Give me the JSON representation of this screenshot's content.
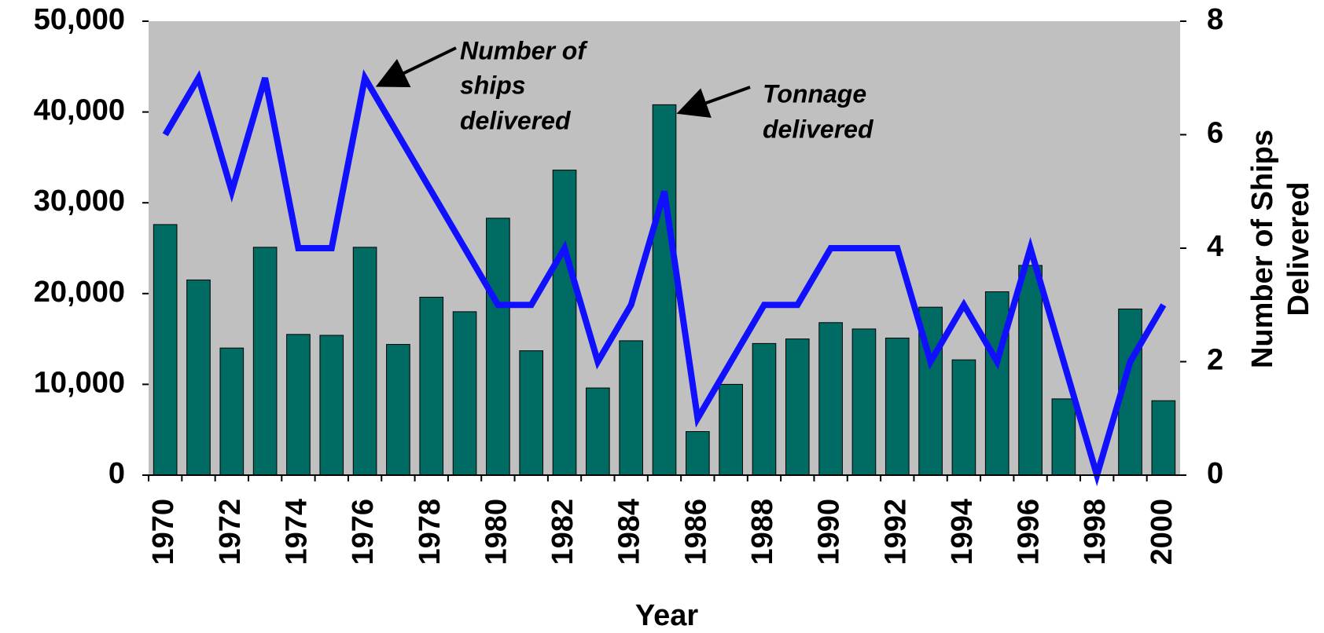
{
  "chart_data": {
    "type": "bar",
    "x_label": "Year",
    "y2_label": [
      "Number of Ships",
      "Delivered"
    ],
    "annotations": [
      {
        "text": [
          "Number of",
          "ships",
          "delivered"
        ]
      },
      {
        "text": [
          "Tonnage",
          "delivered"
        ]
      }
    ],
    "categories": [
      "1970",
      "1971",
      "1972",
      "1973",
      "1974",
      "1975",
      "1976",
      "1977",
      "1978",
      "1979",
      "1980",
      "1981",
      "1982",
      "1983",
      "1984",
      "1985",
      "1986",
      "1987",
      "1988",
      "1989",
      "1990",
      "1991",
      "1992",
      "1993",
      "1994",
      "1995",
      "1996",
      "1997",
      "1998",
      "1999",
      "2000"
    ],
    "category_labels": [
      "1970",
      null,
      "1972",
      null,
      "1974",
      null,
      "1976",
      null,
      "1978",
      null,
      "1980",
      null,
      "1982",
      null,
      "1984",
      null,
      "1986",
      null,
      "1988",
      null,
      "1990",
      null,
      "1992",
      null,
      "1994",
      null,
      "1996",
      null,
      "1998",
      null,
      "2000"
    ],
    "series": [
      {
        "name": "Tonnage delivered",
        "type": "bar",
        "color": "#006b63",
        "values": [
          27600,
          21500,
          14000,
          25100,
          15500,
          15400,
          25100,
          14400,
          19600,
          18000,
          28300,
          13700,
          33600,
          9600,
          14800,
          40800,
          4800,
          10000,
          14500,
          15000,
          16800,
          16100,
          15100,
          18500,
          12700,
          20200,
          23100,
          8400,
          0,
          18300,
          8200
        ]
      },
      {
        "name": "Number of ships delivered",
        "type": "line",
        "axis": "y2",
        "color": "#1010ff",
        "values": [
          6,
          7,
          5,
          7,
          4,
          4,
          7,
          6,
          5,
          4,
          3,
          3,
          4,
          2,
          3,
          5,
          1,
          2,
          3,
          3,
          4,
          4,
          4,
          2,
          3,
          2,
          4,
          2,
          0,
          2,
          3
        ]
      }
    ],
    "ylim": [
      0,
      50000
    ],
    "yticks": [
      0,
      {
        "value": 10000,
        "label": "10,000"
      },
      {
        "value": 20000,
        "label": "20,000"
      },
      {
        "value": 30000,
        "label": "30,000"
      },
      {
        "value": 40000,
        "label": "40,000"
      },
      {
        "value": 50000,
        "label": "50,000"
      }
    ],
    "y2lim": [
      0,
      8
    ],
    "y2ticks": [
      0,
      2,
      4,
      6,
      8
    ],
    "background": "#c0c0c0"
  }
}
